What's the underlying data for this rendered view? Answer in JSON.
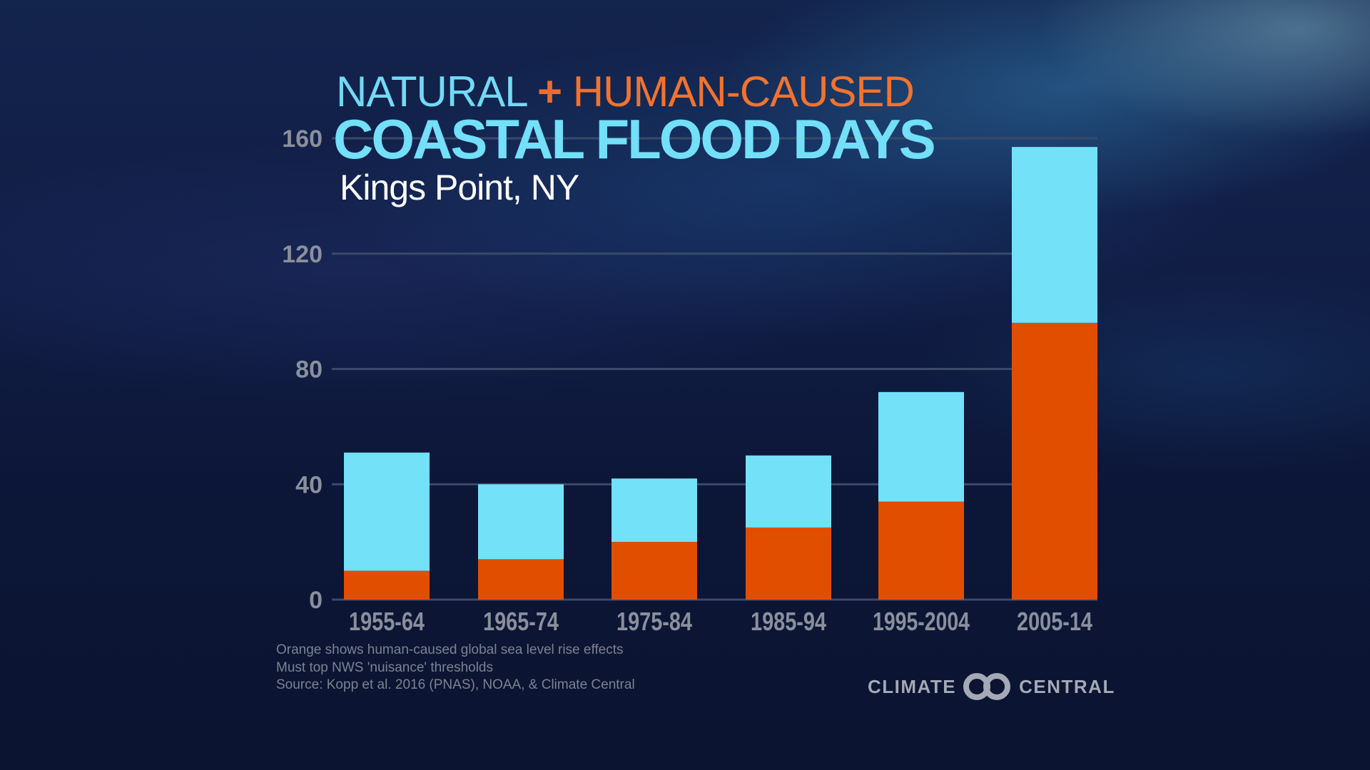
{
  "title": {
    "line1_natural": "NATURAL",
    "line1_plus": "+",
    "line1_human": "HUMAN-CAUSED",
    "line2": "COASTAL FLOOD DAYS",
    "location": "Kings Point, NY"
  },
  "colors": {
    "natural": "#73e1f8",
    "human_caused": "#e24e00",
    "axis_text": "#8a8f9c",
    "gridline": "#3a4a6a"
  },
  "notes": [
    "Orange shows human-caused global sea level rise effects",
    "Must top NWS 'nuisance' thresholds",
    "Source: Kopp et al. 2016 (PNAS), NOAA, & Climate Central"
  ],
  "logo": {
    "left": "CLIMATE",
    "right": "CENTRAL",
    "icon": "climate-central-rings-icon"
  },
  "chart_data": {
    "type": "bar",
    "stacked": true,
    "title": "NATURAL + HUMAN-CAUSED COASTAL FLOOD DAYS",
    "subtitle": "Kings Point, NY",
    "xlabel": "",
    "ylabel": "",
    "categories": [
      "1955-64",
      "1965-74",
      "1975-84",
      "1985-94",
      "1995-2004",
      "2005-14"
    ],
    "series": [
      {
        "name": "Human-caused",
        "color": "#e24e00",
        "values": [
          10,
          14,
          20,
          25,
          34,
          96
        ]
      },
      {
        "name": "Natural",
        "color": "#73e1f8",
        "values": [
          41,
          26,
          22,
          25,
          38,
          61
        ]
      }
    ],
    "totals": [
      51,
      40,
      42,
      50,
      72,
      157
    ],
    "ylim": [
      0,
      160
    ],
    "yticks": [
      0,
      40,
      80,
      120,
      160
    ],
    "grid": true,
    "legend": "none (encoded in title colors)"
  }
}
